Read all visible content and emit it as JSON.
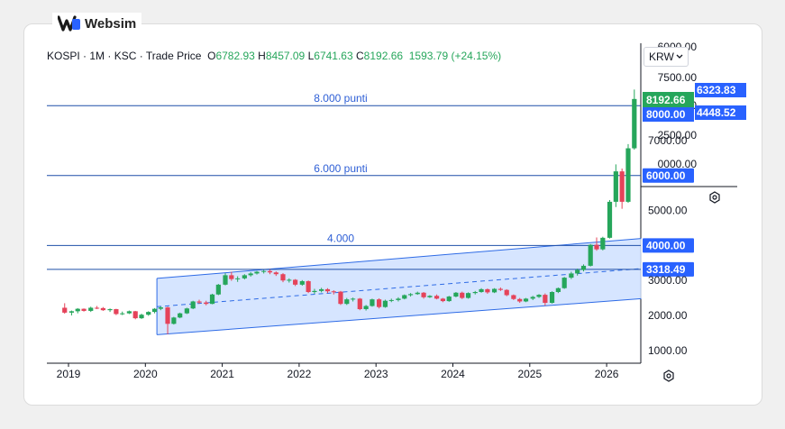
{
  "brand": {
    "name": "Websim",
    "logo_icon": "websim-logo-icon"
  },
  "header": {
    "symbol": "KOSPI",
    "interval": "1M",
    "exchange": "KSC",
    "price_type": "Trade Price",
    "open_label": "O",
    "open": "6782.93",
    "high_label": "H",
    "high": "8457.09",
    "low_label": "L",
    "low": "6741.63",
    "close_label": "C",
    "close": "8192.66",
    "change": "1593.79 (+24.15%)"
  },
  "currency": {
    "value": "KRW",
    "icon": "chevron-down-icon"
  },
  "colors": {
    "up": "#26a65b",
    "down": "#e5435a",
    "line": "#1f4fa8",
    "channel_fill": "#cfe0ff",
    "channel_border": "#2e6be6",
    "badge": "#2962ff",
    "price_badge": "#26a65b"
  },
  "chart_data": {
    "type": "candlestick",
    "x_ticks": [
      "2019",
      "2020",
      "2021",
      "2022",
      "2023",
      "2024",
      "2025",
      "2026"
    ],
    "y_ticks": [
      "1000.00",
      "2000.00",
      "3000.00",
      "4000.00",
      "5000.00",
      "6000.00",
      "7000.00",
      "8000.00"
    ],
    "overlay_ticks": [
      "0000.00",
      "2500.00",
      "5000.00",
      "7500.00",
      "6000.00"
    ],
    "horizontal_lines": [
      {
        "value": 8000,
        "label": "8.000 punti",
        "badge": "8000.00"
      },
      {
        "value": 6000,
        "label": "6.000 punti",
        "badge": "6000.00"
      },
      {
        "value": 4000,
        "label": "4.000",
        "badge": "4000.00"
      },
      {
        "value": 3318.49,
        "label": "",
        "badge": "3318.49"
      }
    ],
    "price_badges": [
      "8192.66",
      "8000.00",
      "6323.83",
      "4448.52"
    ],
    "channel": {
      "upper_start": [
        2020.15,
        3060
      ],
      "upper_end": [
        2026.45,
        4200
      ],
      "lower_start": [
        2020.15,
        1450
      ],
      "lower_end": [
        2026.45,
        2480
      ],
      "mid_start": [
        2020.15,
        2250
      ],
      "mid_end": [
        2026.45,
        3340
      ]
    },
    "candles": [
      {
        "t": 2018.95,
        "o": 2220,
        "h": 2350,
        "l": 2050,
        "c": 2080
      },
      {
        "t": 2019.04,
        "o": 2080,
        "h": 2140,
        "l": 2000,
        "c": 2120
      },
      {
        "t": 2019.12,
        "o": 2120,
        "h": 2210,
        "l": 2060,
        "c": 2190
      },
      {
        "t": 2019.2,
        "o": 2190,
        "h": 2200,
        "l": 2110,
        "c": 2130
      },
      {
        "t": 2019.29,
        "o": 2130,
        "h": 2250,
        "l": 2100,
        "c": 2220
      },
      {
        "t": 2019.37,
        "o": 2220,
        "h": 2270,
        "l": 2180,
        "c": 2210
      },
      {
        "t": 2019.45,
        "o": 2210,
        "h": 2240,
        "l": 2130,
        "c": 2150
      },
      {
        "t": 2019.54,
        "o": 2150,
        "h": 2200,
        "l": 2100,
        "c": 2180
      },
      {
        "t": 2019.62,
        "o": 2180,
        "h": 2190,
        "l": 2010,
        "c": 2040
      },
      {
        "t": 2019.7,
        "o": 2040,
        "h": 2110,
        "l": 2010,
        "c": 2060
      },
      {
        "t": 2019.79,
        "o": 2060,
        "h": 2140,
        "l": 2040,
        "c": 2120
      },
      {
        "t": 2019.87,
        "o": 2120,
        "h": 2130,
        "l": 1890,
        "c": 1920
      },
      {
        "t": 2019.95,
        "o": 1920,
        "h": 2050,
        "l": 1900,
        "c": 2020
      },
      {
        "t": 2020.04,
        "o": 2020,
        "h": 2120,
        "l": 1990,
        "c": 2100
      },
      {
        "t": 2020.12,
        "o": 2100,
        "h": 2210,
        "l": 2060,
        "c": 2190
      },
      {
        "t": 2020.2,
        "o": 2190,
        "h": 2260,
        "l": 2150,
        "c": 2230
      },
      {
        "t": 2020.29,
        "o": 2230,
        "h": 2250,
        "l": 1460,
        "c": 1760
      },
      {
        "t": 2020.37,
        "o": 1760,
        "h": 1960,
        "l": 1740,
        "c": 1940
      },
      {
        "t": 2020.45,
        "o": 1940,
        "h": 2080,
        "l": 1920,
        "c": 2060
      },
      {
        "t": 2020.54,
        "o": 2060,
        "h": 2220,
        "l": 2040,
        "c": 2200
      },
      {
        "t": 2020.62,
        "o": 2200,
        "h": 2420,
        "l": 2180,
        "c": 2400
      },
      {
        "t": 2020.7,
        "o": 2400,
        "h": 2450,
        "l": 2330,
        "c": 2370
      },
      {
        "t": 2020.79,
        "o": 2370,
        "h": 2420,
        "l": 2290,
        "c": 2330
      },
      {
        "t": 2020.87,
        "o": 2330,
        "h": 2620,
        "l": 2320,
        "c": 2600
      },
      {
        "t": 2020.95,
        "o": 2600,
        "h": 2900,
        "l": 2580,
        "c": 2880
      },
      {
        "t": 2021.04,
        "o": 2880,
        "h": 3210,
        "l": 2860,
        "c": 3150
      },
      {
        "t": 2021.12,
        "o": 3150,
        "h": 3250,
        "l": 2990,
        "c": 3040
      },
      {
        "t": 2021.2,
        "o": 3040,
        "h": 3120,
        "l": 2960,
        "c": 3060
      },
      {
        "t": 2021.29,
        "o": 3060,
        "h": 3180,
        "l": 3030,
        "c": 3150
      },
      {
        "t": 2021.37,
        "o": 3150,
        "h": 3240,
        "l": 3110,
        "c": 3200
      },
      {
        "t": 2021.45,
        "o": 3200,
        "h": 3270,
        "l": 3170,
        "c": 3250
      },
      {
        "t": 2021.54,
        "o": 3250,
        "h": 3300,
        "l": 3200,
        "c": 3270
      },
      {
        "t": 2021.62,
        "o": 3270,
        "h": 3320,
        "l": 3180,
        "c": 3230
      },
      {
        "t": 2021.7,
        "o": 3230,
        "h": 3260,
        "l": 3130,
        "c": 3180
      },
      {
        "t": 2021.79,
        "o": 3180,
        "h": 3210,
        "l": 2950,
        "c": 3000
      },
      {
        "t": 2021.87,
        "o": 3000,
        "h": 3060,
        "l": 2940,
        "c": 3020
      },
      {
        "t": 2021.95,
        "o": 3020,
        "h": 3040,
        "l": 2840,
        "c": 2880
      },
      {
        "t": 2022.04,
        "o": 2880,
        "h": 3010,
        "l": 2850,
        "c": 2980
      },
      {
        "t": 2022.12,
        "o": 2980,
        "h": 3000,
        "l": 2640,
        "c": 2670
      },
      {
        "t": 2022.2,
        "o": 2670,
        "h": 2760,
        "l": 2620,
        "c": 2700
      },
      {
        "t": 2022.29,
        "o": 2700,
        "h": 2790,
        "l": 2660,
        "c": 2750
      },
      {
        "t": 2022.37,
        "o": 2750,
        "h": 2780,
        "l": 2640,
        "c": 2690
      },
      {
        "t": 2022.45,
        "o": 2690,
        "h": 2720,
        "l": 2600,
        "c": 2680
      },
      {
        "t": 2022.54,
        "o": 2680,
        "h": 2700,
        "l": 2300,
        "c": 2330
      },
      {
        "t": 2022.62,
        "o": 2330,
        "h": 2500,
        "l": 2300,
        "c": 2460
      },
      {
        "t": 2022.7,
        "o": 2460,
        "h": 2510,
        "l": 2400,
        "c": 2480
      },
      {
        "t": 2022.79,
        "o": 2480,
        "h": 2500,
        "l": 2150,
        "c": 2180
      },
      {
        "t": 2022.87,
        "o": 2180,
        "h": 2300,
        "l": 2140,
        "c": 2270
      },
      {
        "t": 2022.95,
        "o": 2270,
        "h": 2480,
        "l": 2250,
        "c": 2460
      },
      {
        "t": 2023.04,
        "o": 2460,
        "h": 2490,
        "l": 2200,
        "c": 2240
      },
      {
        "t": 2023.12,
        "o": 2240,
        "h": 2450,
        "l": 2220,
        "c": 2420
      },
      {
        "t": 2023.2,
        "o": 2420,
        "h": 2480,
        "l": 2380,
        "c": 2440
      },
      {
        "t": 2023.29,
        "o": 2440,
        "h": 2520,
        "l": 2400,
        "c": 2480
      },
      {
        "t": 2023.37,
        "o": 2480,
        "h": 2600,
        "l": 2460,
        "c": 2580
      },
      {
        "t": 2023.45,
        "o": 2580,
        "h": 2640,
        "l": 2540,
        "c": 2610
      },
      {
        "t": 2023.54,
        "o": 2610,
        "h": 2680,
        "l": 2590,
        "c": 2650
      },
      {
        "t": 2023.62,
        "o": 2650,
        "h": 2670,
        "l": 2480,
        "c": 2520
      },
      {
        "t": 2023.7,
        "o": 2520,
        "h": 2580,
        "l": 2500,
        "c": 2560
      },
      {
        "t": 2023.79,
        "o": 2560,
        "h": 2600,
        "l": 2460,
        "c": 2480
      },
      {
        "t": 2023.87,
        "o": 2480,
        "h": 2500,
        "l": 2380,
        "c": 2410
      },
      {
        "t": 2023.95,
        "o": 2410,
        "h": 2560,
        "l": 2390,
        "c": 2540
      },
      {
        "t": 2024.04,
        "o": 2540,
        "h": 2670,
        "l": 2520,
        "c": 2650
      },
      {
        "t": 2024.12,
        "o": 2650,
        "h": 2680,
        "l": 2470,
        "c": 2500
      },
      {
        "t": 2024.2,
        "o": 2500,
        "h": 2660,
        "l": 2480,
        "c": 2640
      },
      {
        "t": 2024.29,
        "o": 2640,
        "h": 2700,
        "l": 2600,
        "c": 2670
      },
      {
        "t": 2024.37,
        "o": 2670,
        "h": 2780,
        "l": 2650,
        "c": 2750
      },
      {
        "t": 2024.45,
        "o": 2750,
        "h": 2770,
        "l": 2620,
        "c": 2660
      },
      {
        "t": 2024.54,
        "o": 2660,
        "h": 2780,
        "l": 2640,
        "c": 2760
      },
      {
        "t": 2024.62,
        "o": 2760,
        "h": 2800,
        "l": 2700,
        "c": 2730
      },
      {
        "t": 2024.7,
        "o": 2730,
        "h": 2750,
        "l": 2550,
        "c": 2580
      },
      {
        "t": 2024.79,
        "o": 2580,
        "h": 2600,
        "l": 2440,
        "c": 2470
      },
      {
        "t": 2024.87,
        "o": 2470,
        "h": 2500,
        "l": 2360,
        "c": 2400
      },
      {
        "t": 2024.95,
        "o": 2400,
        "h": 2500,
        "l": 2380,
        "c": 2480
      },
      {
        "t": 2025.04,
        "o": 2480,
        "h": 2560,
        "l": 2440,
        "c": 2530
      },
      {
        "t": 2025.12,
        "o": 2530,
        "h": 2610,
        "l": 2500,
        "c": 2590
      },
      {
        "t": 2025.2,
        "o": 2590,
        "h": 2630,
        "l": 2280,
        "c": 2360
      },
      {
        "t": 2025.29,
        "o": 2360,
        "h": 2690,
        "l": 2340,
        "c": 2670
      },
      {
        "t": 2025.37,
        "o": 2670,
        "h": 2800,
        "l": 2640,
        "c": 2780
      },
      {
        "t": 2025.45,
        "o": 2780,
        "h": 3100,
        "l": 2760,
        "c": 3080
      },
      {
        "t": 2025.54,
        "o": 3080,
        "h": 3250,
        "l": 3040,
        "c": 3200
      },
      {
        "t": 2025.62,
        "o": 3200,
        "h": 3340,
        "l": 3140,
        "c": 3300
      },
      {
        "t": 2025.7,
        "o": 3300,
        "h": 3460,
        "l": 3260,
        "c": 3420
      },
      {
        "t": 2025.79,
        "o": 3420,
        "h": 4040,
        "l": 3400,
        "c": 4020
      },
      {
        "t": 2025.87,
        "o": 4020,
        "h": 4230,
        "l": 3850,
        "c": 3890
      },
      {
        "t": 2025.95,
        "o": 3890,
        "h": 4250,
        "l": 3860,
        "c": 4220
      },
      {
        "t": 2026.04,
        "o": 4220,
        "h": 5300,
        "l": 4200,
        "c": 5250
      },
      {
        "t": 2026.12,
        "o": 5250,
        "h": 6320,
        "l": 5100,
        "c": 6120
      },
      {
        "t": 2026.2,
        "o": 6120,
        "h": 6200,
        "l": 5050,
        "c": 5250
      },
      {
        "t": 2026.28,
        "o": 5250,
        "h": 6900,
        "l": 5220,
        "c": 6780
      },
      {
        "t": 2026.36,
        "o": 6780,
        "h": 8460,
        "l": 6740,
        "c": 8190
      }
    ]
  }
}
